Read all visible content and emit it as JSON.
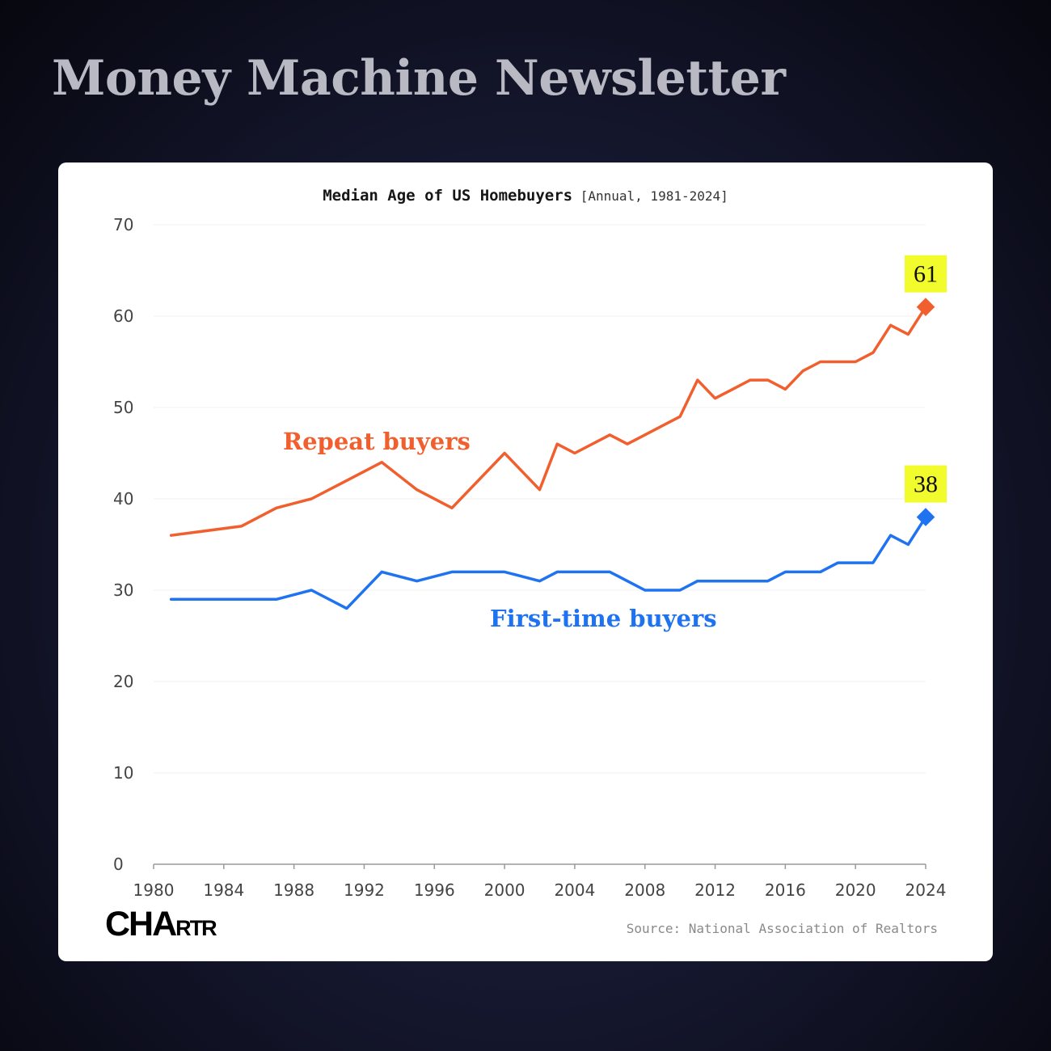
{
  "brand": {
    "title": "Money Machine Newsletter"
  },
  "footer": {
    "logo_big": "CHA",
    "logo_small": "RTR",
    "source": "Source: National Association of Realtors"
  },
  "chart_data": {
    "type": "line",
    "title": "Median Age of US Homebuyers",
    "subtitle": "[Annual, 1981-2024]",
    "xlim": [
      1980,
      2024
    ],
    "ylim": [
      0,
      70
    ],
    "x_ticks": [
      1980,
      1984,
      1988,
      1992,
      1996,
      2000,
      2004,
      2008,
      2012,
      2016,
      2020,
      2024
    ],
    "y_ticks": [
      0,
      10,
      20,
      30,
      40,
      50,
      60,
      70
    ],
    "grid": true,
    "series": [
      {
        "name": "Repeat buyers",
        "color": "#f05f2d",
        "x": [
          1981,
          1985,
          1987,
          1989,
          1991,
          1993,
          1995,
          1997,
          2000,
          2002,
          2003,
          2004,
          2006,
          2007,
          2008,
          2009,
          2010,
          2011,
          2012,
          2013,
          2014,
          2015,
          2016,
          2017,
          2018,
          2019,
          2020,
          2021,
          2022,
          2023,
          2024
        ],
        "values": [
          36,
          37,
          39,
          40,
          42,
          44,
          41,
          39,
          45,
          41,
          46,
          45,
          47,
          46,
          47,
          48,
          49,
          53,
          51,
          52,
          53,
          53,
          52,
          54,
          55,
          55,
          55,
          56,
          59,
          58,
          61
        ],
        "end_label": "61"
      },
      {
        "name": "First-time buyers",
        "color": "#1f73f0",
        "x": [
          1981,
          1985,
          1987,
          1989,
          1991,
          1993,
          1995,
          1997,
          2000,
          2002,
          2003,
          2004,
          2006,
          2007,
          2008,
          2009,
          2010,
          2011,
          2012,
          2013,
          2014,
          2015,
          2016,
          2017,
          2018,
          2019,
          2020,
          2021,
          2022,
          2023,
          2024
        ],
        "values": [
          29,
          29,
          29,
          30,
          28,
          32,
          31,
          32,
          32,
          31,
          32,
          32,
          32,
          31,
          30,
          30,
          30,
          31,
          31,
          31,
          31,
          31,
          32,
          32,
          32,
          33,
          33,
          33,
          36,
          35,
          38
        ],
        "end_label": "38"
      }
    ],
    "highlight_color": "#f2fb2b"
  }
}
